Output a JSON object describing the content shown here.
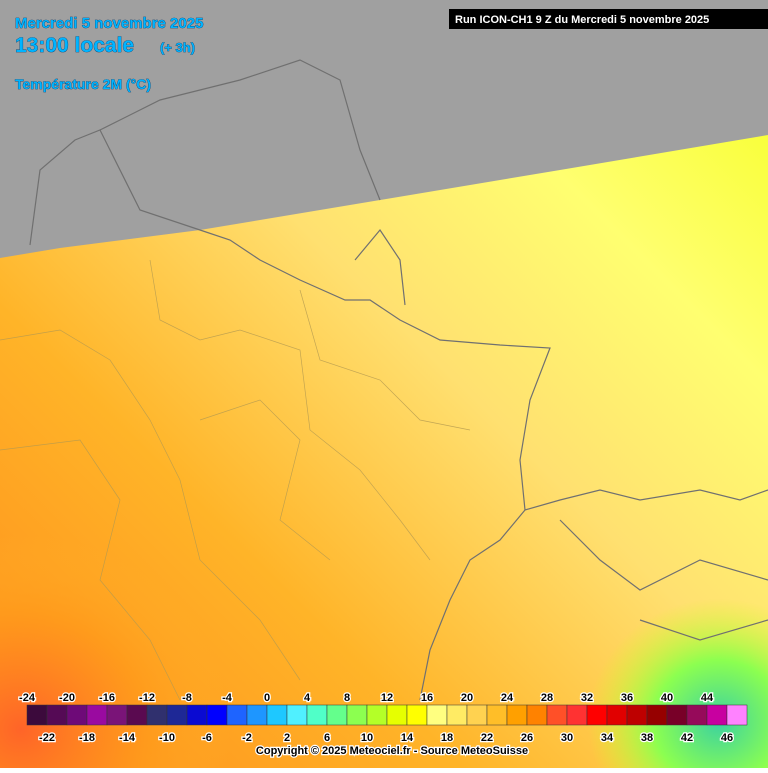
{
  "header": {
    "date": "Mercredi 5 novembre 2025",
    "time": "13:00 locale",
    "offset": "(+ 3h)",
    "parameter": "Température 2M (°C)",
    "run": "Run ICON-CH1 9 Z du Mercredi 5 novembre 2025"
  },
  "scale": {
    "values": [
      -24,
      -22,
      -20,
      -18,
      -16,
      -14,
      -12,
      -10,
      -8,
      -6,
      -4,
      -2,
      0,
      2,
      4,
      6,
      8,
      10,
      12,
      14,
      16,
      18,
      20,
      22,
      24,
      26,
      28,
      30,
      32,
      34,
      36,
      38,
      40,
      42,
      44,
      46
    ],
    "colors": [
      "#3c0a3c",
      "#550a55",
      "#6e0a78",
      "#9a0aa0",
      "#7a1478",
      "#5a0a50",
      "#30306e",
      "#1e2896",
      "#0a0ad2",
      "#0000ff",
      "#1e64ff",
      "#1e96ff",
      "#1ec8ff",
      "#50f0ff",
      "#50ffc8",
      "#64ff8c",
      "#8cff50",
      "#b4ff28",
      "#e6ff00",
      "#ffff00",
      "#ffff80",
      "#ffeb64",
      "#ffd250",
      "#ffbe28",
      "#ffa000",
      "#ff8200",
      "#ff5028",
      "#ff3232",
      "#ff0000",
      "#e10000",
      "#be0000",
      "#960000",
      "#780028",
      "#960a5a",
      "#c800a0",
      "#ff82ff"
    ]
  },
  "footer": {
    "copyright": "Copyright © 2025 Meteociel.fr - Source MeteoSuisse"
  }
}
